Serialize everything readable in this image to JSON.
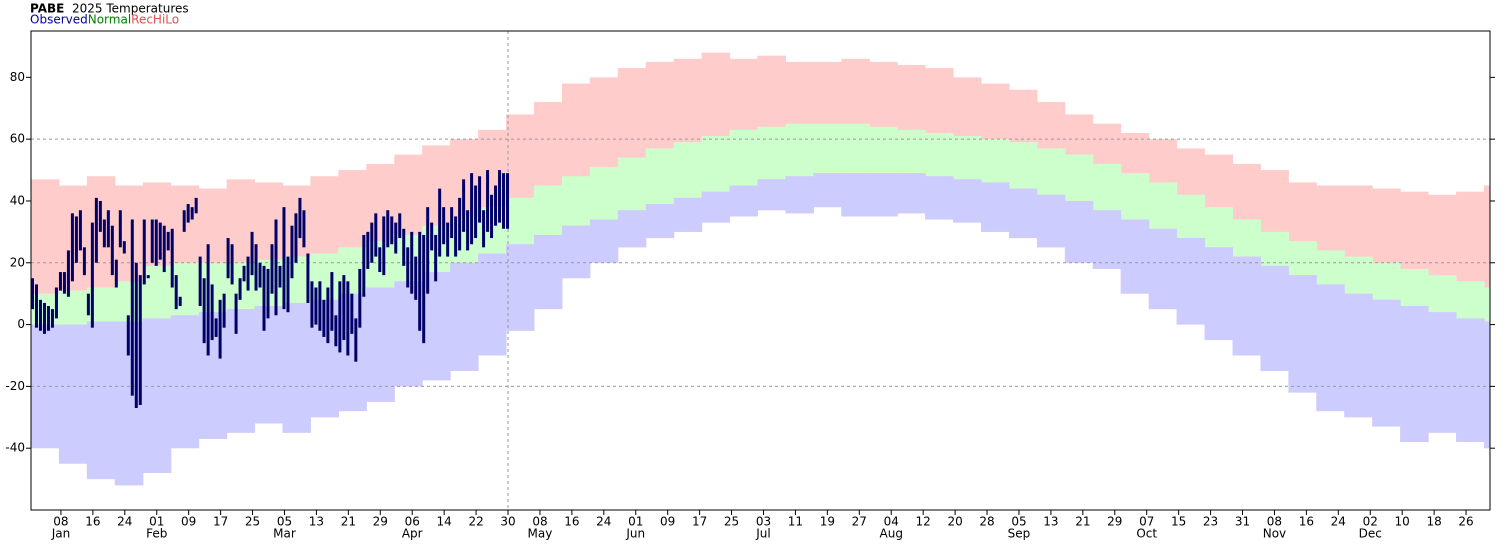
{
  "chart_data": {
    "type": "range-bar",
    "station": "PABE",
    "title": "2025 Temperatures",
    "xlim": [
      0.5,
      366
    ],
    "ylim": [
      -60,
      95
    ],
    "yticks": [
      -40,
      -20,
      0,
      20,
      40,
      60,
      80
    ],
    "ygrid": [
      -20,
      20,
      60
    ],
    "vline_x": 120,
    "xticks": [
      {
        "value": 8,
        "label": "08"
      },
      {
        "value": 16,
        "label": "16"
      },
      {
        "value": 24,
        "label": "24"
      },
      {
        "value": 32,
        "label": "01"
      },
      {
        "value": 40,
        "label": "09"
      },
      {
        "value": 48,
        "label": "17"
      },
      {
        "value": 56,
        "label": "25"
      },
      {
        "value": 64,
        "label": "05"
      },
      {
        "value": 72,
        "label": "13"
      },
      {
        "value": 80,
        "label": "21"
      },
      {
        "value": 88,
        "label": "29"
      },
      {
        "value": 96,
        "label": "06"
      },
      {
        "value": 104,
        "label": "14"
      },
      {
        "value": 112,
        "label": "22"
      },
      {
        "value": 120,
        "label": "30"
      },
      {
        "value": 128,
        "label": "08"
      },
      {
        "value": 136,
        "label": "16"
      },
      {
        "value": 144,
        "label": "24"
      },
      {
        "value": 152,
        "label": "01"
      },
      {
        "value": 160,
        "label": "09"
      },
      {
        "value": 168,
        "label": "17"
      },
      {
        "value": 176,
        "label": "25"
      },
      {
        "value": 184,
        "label": "03"
      },
      {
        "value": 192,
        "label": "11"
      },
      {
        "value": 200,
        "label": "19"
      },
      {
        "value": 208,
        "label": "27"
      },
      {
        "value": 216,
        "label": "04"
      },
      {
        "value": 224,
        "label": "12"
      },
      {
        "value": 232,
        "label": "20"
      },
      {
        "value": 240,
        "label": "28"
      },
      {
        "value": 248,
        "label": "05"
      },
      {
        "value": 256,
        "label": "13"
      },
      {
        "value": 264,
        "label": "21"
      },
      {
        "value": 272,
        "label": "29"
      },
      {
        "value": 280,
        "label": "07"
      },
      {
        "value": 288,
        "label": "15"
      },
      {
        "value": 296,
        "label": "23"
      },
      {
        "value": 304,
        "label": "31"
      },
      {
        "value": 312,
        "label": "08"
      },
      {
        "value": 320,
        "label": "16"
      },
      {
        "value": 328,
        "label": "24"
      },
      {
        "value": 336,
        "label": "02"
      },
      {
        "value": 344,
        "label": "10"
      },
      {
        "value": 352,
        "label": "18"
      },
      {
        "value": 360,
        "label": "26"
      }
    ],
    "month_ticks": [
      {
        "value": 8,
        "label": "Jan"
      },
      {
        "value": 32,
        "label": "Feb"
      },
      {
        "value": 64,
        "label": "Mar"
      },
      {
        "value": 96,
        "label": "Apr"
      },
      {
        "value": 128,
        "label": "May"
      },
      {
        "value": 152,
        "label": "Jun"
      },
      {
        "value": 184,
        "label": "Jul"
      },
      {
        "value": 216,
        "label": "Aug"
      },
      {
        "value": 248,
        "label": "Sep"
      },
      {
        "value": 280,
        "label": "Oct"
      },
      {
        "value": 312,
        "label": "Nov"
      },
      {
        "value": 336,
        "label": "Dec"
      }
    ],
    "series": [
      {
        "name": "RecHiLo",
        "color": "#ffcccc",
        "legend_color": "#e05050",
        "x": [
          1,
          8,
          15,
          22,
          29,
          36,
          43,
          50,
          57,
          64,
          71,
          78,
          85,
          92,
          99,
          106,
          113,
          120,
          127,
          134,
          141,
          148,
          155,
          162,
          169,
          176,
          183,
          190,
          197,
          204,
          211,
          218,
          225,
          232,
          239,
          246,
          253,
          260,
          267,
          274,
          281,
          288,
          295,
          302,
          309,
          316,
          323,
          330,
          337,
          344,
          351,
          358,
          365
        ],
        "low": [
          -40,
          -45,
          -50,
          -52,
          -48,
          -40,
          -37,
          -35,
          -32,
          -35,
          -30,
          -28,
          -25,
          -20,
          -18,
          -15,
          -10,
          -2,
          5,
          15,
          20,
          25,
          28,
          30,
          33,
          35,
          37,
          36,
          38,
          35,
          35,
          36,
          34,
          33,
          30,
          28,
          25,
          20,
          18,
          10,
          5,
          0,
          -5,
          -10,
          -15,
          -22,
          -28,
          -30,
          -33,
          -38,
          -35,
          -38,
          -40
        ],
        "high": [
          47,
          45,
          48,
          45,
          46,
          45,
          44,
          47,
          46,
          45,
          48,
          50,
          52,
          55,
          58,
          60,
          63,
          68,
          72,
          78,
          80,
          83,
          85,
          86,
          88,
          86,
          87,
          85,
          85,
          86,
          85,
          84,
          83,
          80,
          78,
          76,
          72,
          68,
          65,
          62,
          60,
          57,
          55,
          52,
          50,
          46,
          45,
          45,
          44,
          43,
          42,
          43,
          45
        ]
      },
      {
        "name": "Normal",
        "color": "#ccffcc",
        "legend_color": "#008000",
        "x": [
          1,
          8,
          15,
          22,
          29,
          36,
          43,
          50,
          57,
          64,
          71,
          78,
          85,
          92,
          99,
          106,
          113,
          120,
          127,
          134,
          141,
          148,
          155,
          162,
          169,
          176,
          183,
          190,
          197,
          204,
          211,
          218,
          225,
          232,
          239,
          246,
          253,
          260,
          267,
          274,
          281,
          288,
          295,
          302,
          309,
          316,
          323,
          330,
          337,
          344,
          351,
          358,
          365
        ],
        "low": [
          0,
          0,
          1,
          1,
          2,
          3,
          4,
          5,
          6,
          7,
          8,
          10,
          12,
          14,
          17,
          20,
          23,
          26,
          29,
          32,
          34,
          37,
          39,
          41,
          43,
          45,
          47,
          48,
          49,
          49,
          49,
          49,
          48,
          47,
          46,
          44,
          42,
          40,
          37,
          34,
          31,
          28,
          25,
          22,
          19,
          16,
          13,
          10,
          8,
          6,
          4,
          2,
          1
        ],
        "high": [
          10,
          11,
          12,
          14,
          19,
          20,
          20,
          20,
          21,
          22,
          23,
          25,
          27,
          29,
          32,
          35,
          38,
          41,
          45,
          48,
          51,
          54,
          57,
          59,
          61,
          63,
          64,
          65,
          65,
          65,
          64,
          63,
          62,
          61,
          60,
          59,
          57,
          55,
          52,
          49,
          46,
          42,
          38,
          34,
          30,
          27,
          24,
          22,
          20,
          18,
          16,
          14,
          12
        ]
      },
      {
        "name": "Observed",
        "color": "#000066",
        "legend_color": "#000099",
        "x": [
          1,
          2,
          3,
          4,
          5,
          6,
          7,
          8,
          9,
          10,
          11,
          12,
          13,
          14,
          15,
          16,
          17,
          18,
          19,
          20,
          21,
          22,
          23,
          24,
          25,
          26,
          27,
          28,
          29,
          30,
          31,
          32,
          33,
          34,
          35,
          36,
          37,
          38,
          39,
          40,
          41,
          42,
          43,
          44,
          45,
          46,
          47,
          48,
          49,
          50,
          51,
          52,
          53,
          54,
          55,
          56,
          57,
          58,
          59,
          60,
          61,
          62,
          63,
          64,
          65,
          66,
          67,
          68,
          69,
          70,
          71,
          72,
          73,
          74,
          75,
          76,
          77,
          78,
          79,
          80,
          81,
          82,
          83,
          84,
          85,
          86,
          87,
          88,
          89,
          90,
          91,
          92,
          93,
          94,
          95,
          96,
          97,
          98,
          99,
          100,
          101,
          102,
          103,
          104,
          105,
          106,
          107,
          108,
          109,
          110,
          111,
          112,
          113,
          114,
          115,
          116,
          117,
          118,
          119,
          120
        ],
        "low": [
          5,
          -1,
          -2,
          -3,
          -2,
          -1,
          2,
          11,
          10,
          9,
          14,
          20,
          24,
          16,
          3,
          -1,
          20,
          30,
          25,
          25,
          16,
          12,
          25,
          23,
          -10,
          -23,
          -27,
          -26,
          13,
          15,
          20,
          19,
          21,
          17,
          24,
          12,
          5,
          6,
          30,
          33,
          34,
          36,
          6,
          -6,
          -10,
          -5,
          -4,
          -11,
          -1,
          15,
          13,
          -3,
          8,
          14,
          11,
          16,
          11,
          12,
          -2,
          2,
          10,
          3,
          12,
          5,
          4,
          15,
          20,
          28,
          25,
          7,
          -1,
          0,
          -2,
          -4,
          -6,
          -2,
          -7,
          -9,
          -5,
          -10,
          -3,
          -12,
          -1,
          9,
          18,
          20,
          22,
          17,
          16,
          25,
          26,
          23,
          28,
          19,
          12,
          10,
          8,
          -2,
          -6,
          10,
          24,
          14,
          22,
          26,
          22,
          28,
          22,
          24,
          30,
          24,
          26,
          28,
          33,
          25,
          30,
          28,
          32,
          33,
          31,
          31
        ],
        "high": [
          15,
          13,
          8,
          7,
          6,
          5,
          12,
          17,
          17,
          24,
          36,
          35,
          37,
          25,
          10,
          33,
          41,
          40,
          34,
          37,
          32,
          21,
          37,
          27,
          3,
          34,
          20,
          16,
          34,
          16,
          34,
          34,
          33,
          32,
          30,
          31,
          16,
          9,
          37,
          39,
          38,
          41,
          22,
          15,
          26,
          13,
          2,
          8,
          10,
          28,
          26,
          10,
          15,
          19,
          22,
          30,
          26,
          20,
          19,
          18,
          26,
          34,
          19,
          38,
          22,
          32,
          36,
          41,
          37,
          23,
          14,
          12,
          14,
          8,
          12,
          17,
          3,
          14,
          16,
          14,
          10,
          2,
          18,
          29,
          30,
          33,
          36,
          25,
          35,
          37,
          35,
          33,
          36,
          31,
          25,
          30,
          22,
          30,
          29,
          38,
          33,
          29,
          44,
          38,
          33,
          38,
          35,
          41,
          47,
          37,
          49,
          45,
          48,
          37,
          50,
          42,
          45,
          50,
          49,
          49
        ]
      }
    ]
  }
}
